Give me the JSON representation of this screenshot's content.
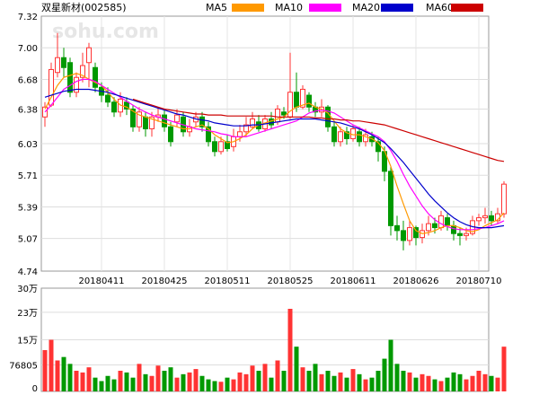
{
  "chart_data": {
    "type": "candlestick",
    "title": "双星新材(002585)",
    "watermark": "sohu.com",
    "legend": [
      {
        "name": "MA5",
        "color": "#ff9900"
      },
      {
        "name": "MA10",
        "color": "#ff00ff"
      },
      {
        "name": "MA20",
        "color": "#0000cc"
      },
      {
        "name": "MA60",
        "color": "#cc0000"
      }
    ],
    "up_color": "#ff3333",
    "down_color": "#009900",
    "price_axis": {
      "ylim": [
        4.74,
        7.32
      ],
      "ticks": [
        "7.32",
        "7.00",
        "6.68",
        "6.38",
        "6.03",
        "5.71",
        "5.39",
        "5.07",
        "4.74"
      ]
    },
    "volume_axis": {
      "ylim": [
        0,
        300000
      ],
      "ticks": [
        "30万",
        "23万",
        "15万",
        "76805",
        "0"
      ],
      "tick_values": [
        300000,
        230000,
        150000,
        76805,
        0
      ]
    },
    "x_labels": [
      {
        "label": "20180411",
        "index": 9
      },
      {
        "label": "20180425",
        "index": 19
      },
      {
        "label": "20180511",
        "index": 29
      },
      {
        "label": "20180525",
        "index": 39
      },
      {
        "label": "20180611",
        "index": 49
      },
      {
        "label": "20180626",
        "index": 59
      },
      {
        "label": "20180710",
        "index": 69
      }
    ],
    "candles": [
      [
        6.3,
        6.4,
        6.2,
        6.45
      ],
      [
        6.42,
        6.78,
        6.4,
        6.85
      ],
      [
        6.75,
        6.9,
        6.7,
        7.15
      ],
      [
        6.9,
        6.8,
        6.7,
        7.0
      ],
      [
        6.85,
        6.55,
        6.5,
        6.9
      ],
      [
        6.55,
        6.7,
        6.5,
        6.75
      ],
      [
        6.7,
        6.82,
        6.65,
        6.95
      ],
      [
        6.85,
        7.0,
        6.6,
        7.05
      ],
      [
        6.8,
        6.6,
        6.55,
        6.85
      ],
      [
        6.6,
        6.52,
        6.45,
        6.65
      ],
      [
        6.52,
        6.45,
        6.4,
        6.6
      ],
      [
        6.45,
        6.35,
        6.3,
        6.5
      ],
      [
        6.35,
        6.48,
        6.3,
        6.55
      ],
      [
        6.45,
        6.38,
        6.32,
        6.5
      ],
      [
        6.38,
        6.2,
        6.15,
        6.42
      ],
      [
        6.2,
        6.35,
        6.15,
        6.4
      ],
      [
        6.3,
        6.18,
        6.1,
        6.35
      ],
      [
        6.18,
        6.3,
        6.1,
        6.35
      ],
      [
        6.3,
        6.32,
        6.25,
        6.4
      ],
      [
        6.32,
        6.2,
        6.15,
        6.38
      ],
      [
        6.2,
        6.05,
        6.0,
        6.25
      ],
      [
        6.25,
        6.32,
        6.2,
        6.38
      ],
      [
        6.3,
        6.15,
        6.1,
        6.35
      ],
      [
        6.15,
        6.2,
        6.1,
        6.28
      ],
      [
        6.25,
        6.3,
        6.2,
        6.35
      ],
      [
        6.3,
        6.2,
        6.15,
        6.35
      ],
      [
        6.2,
        6.05,
        6.0,
        6.25
      ],
      [
        6.05,
        5.95,
        5.9,
        6.1
      ],
      [
        5.95,
        6.05,
        5.92,
        6.1
      ],
      [
        6.05,
        5.98,
        5.95,
        6.12
      ],
      [
        6.0,
        6.1,
        5.95,
        6.18
      ],
      [
        6.1,
        6.15,
        6.05,
        6.22
      ],
      [
        6.15,
        6.22,
        6.1,
        6.3
      ],
      [
        6.2,
        6.28,
        6.18,
        6.35
      ],
      [
        6.25,
        6.18,
        6.15,
        6.32
      ],
      [
        6.18,
        6.28,
        6.15,
        6.32
      ],
      [
        6.28,
        6.22,
        6.18,
        6.35
      ],
      [
        6.25,
        6.38,
        6.22,
        6.42
      ],
      [
        6.35,
        6.32,
        6.28,
        6.4
      ],
      [
        6.3,
        6.55,
        6.28,
        6.95
      ],
      [
        6.55,
        6.4,
        6.35,
        6.75
      ],
      [
        6.4,
        6.58,
        6.38,
        6.62
      ],
      [
        6.52,
        6.4,
        6.35,
        6.55
      ],
      [
        6.4,
        6.35,
        6.3,
        6.45
      ],
      [
        6.35,
        6.4,
        6.3,
        6.48
      ],
      [
        6.4,
        6.2,
        6.15,
        6.42
      ],
      [
        6.2,
        6.05,
        6.0,
        6.25
      ],
      [
        6.05,
        6.15,
        6.0,
        6.2
      ],
      [
        6.15,
        6.08,
        6.02,
        6.2
      ],
      [
        6.08,
        6.18,
        6.05,
        6.22
      ],
      [
        6.15,
        6.05,
        6.0,
        6.2
      ],
      [
        6.05,
        6.12,
        6.0,
        6.18
      ],
      [
        6.1,
        6.05,
        6.0,
        6.15
      ],
      [
        6.05,
        5.95,
        5.85,
        6.1
      ],
      [
        5.95,
        5.75,
        5.65,
        6.0
      ],
      [
        5.75,
        5.2,
        5.1,
        5.8
      ],
      [
        5.2,
        5.15,
        5.05,
        5.3
      ],
      [
        5.15,
        5.05,
        4.95,
        5.25
      ],
      [
        5.05,
        5.18,
        5.0,
        5.25
      ],
      [
        5.18,
        5.08,
        5.0,
        5.2
      ],
      [
        5.08,
        5.15,
        5.02,
        5.22
      ],
      [
        5.15,
        5.22,
        5.1,
        5.3
      ],
      [
        5.22,
        5.18,
        5.12,
        5.28
      ],
      [
        5.18,
        5.3,
        5.15,
        5.35
      ],
      [
        5.28,
        5.2,
        5.15,
        5.32
      ],
      [
        5.2,
        5.12,
        5.05,
        5.25
      ],
      [
        5.12,
        5.1,
        5.0,
        5.18
      ],
      [
        5.1,
        5.12,
        5.05,
        5.18
      ],
      [
        5.12,
        5.25,
        5.1,
        5.3
      ],
      [
        5.25,
        5.28,
        5.2,
        5.32
      ],
      [
        5.28,
        5.3,
        5.22,
        5.38
      ],
      [
        5.3,
        5.25,
        5.2,
        5.35
      ],
      [
        5.25,
        5.32,
        5.22,
        5.38
      ],
      [
        5.32,
        5.62,
        5.28,
        5.65
      ]
    ],
    "volume": [
      120000,
      150000,
      90000,
      100000,
      80000,
      60000,
      55000,
      70000,
      40000,
      30000,
      45000,
      35000,
      60000,
      55000,
      40000,
      80000,
      50000,
      45000,
      75000,
      60000,
      70000,
      40000,
      50000,
      55000,
      65000,
      45000,
      35000,
      30000,
      28000,
      40000,
      35000,
      55000,
      50000,
      75000,
      60000,
      80000,
      40000,
      90000,
      60000,
      240000,
      130000,
      70000,
      60000,
      80000,
      50000,
      60000,
      45000,
      55000,
      40000,
      65000,
      50000,
      35000,
      40000,
      60000,
      95000,
      150000,
      80000,
      60000,
      55000,
      40000,
      50000,
      45000,
      35000,
      30000,
      40000,
      55000,
      50000,
      35000,
      45000,
      60000,
      50000,
      45000,
      40000,
      130000
    ],
    "ma5": [
      6.38,
      6.5,
      6.62,
      6.7,
      6.72,
      6.74,
      6.72,
      6.68,
      6.65,
      6.62,
      6.55,
      6.48,
      6.42,
      6.4,
      6.36,
      6.32,
      6.3,
      6.28,
      6.26,
      6.24,
      6.22,
      6.2,
      6.18,
      6.18,
      6.2,
      6.22,
      6.18,
      6.12,
      6.08,
      6.04,
      6.05,
      6.08,
      6.12,
      6.18,
      6.22,
      6.24,
      6.26,
      6.28,
      6.3,
      6.36,
      6.4,
      6.42,
      6.44,
      6.4,
      6.38,
      6.34,
      6.26,
      6.18,
      6.14,
      6.12,
      6.12,
      6.1,
      6.08,
      6.04,
      5.96,
      5.8,
      5.6,
      5.42,
      5.25,
      5.15,
      5.12,
      5.13,
      5.15,
      5.18,
      5.2,
      5.2,
      5.18,
      5.15,
      5.14,
      5.16,
      5.2,
      5.23,
      5.26,
      5.33
    ],
    "ma10": [
      6.35,
      6.42,
      6.5,
      6.58,
      6.62,
      6.66,
      6.68,
      6.68,
      6.66,
      6.62,
      6.58,
      6.54,
      6.5,
      6.46,
      6.42,
      6.38,
      6.35,
      6.32,
      6.3,
      6.28,
      6.26,
      6.24,
      6.22,
      6.2,
      6.18,
      6.17,
      6.16,
      6.15,
      6.13,
      6.12,
      6.1,
      6.1,
      6.1,
      6.12,
      6.14,
      6.16,
      6.18,
      6.2,
      6.22,
      6.24,
      6.26,
      6.3,
      6.34,
      6.36,
      6.37,
      6.36,
      6.34,
      6.3,
      6.26,
      6.22,
      6.19,
      6.16,
      6.13,
      6.1,
      6.05,
      5.96,
      5.85,
      5.72,
      5.6,
      5.5,
      5.4,
      5.32,
      5.26,
      5.22,
      5.19,
      5.17,
      5.16,
      5.16,
      5.16,
      5.17,
      5.18,
      5.2,
      5.22,
      5.25
    ],
    "ma20": [
      6.5,
      6.52,
      6.54,
      6.56,
      6.57,
      6.58,
      6.58,
      6.58,
      6.57,
      6.56,
      6.55,
      6.53,
      6.51,
      6.49,
      6.47,
      6.45,
      6.43,
      6.41,
      6.39,
      6.37,
      6.35,
      6.33,
      6.32,
      6.3,
      6.28,
      6.27,
      6.26,
      6.24,
      6.23,
      6.22,
      6.21,
      6.21,
      6.21,
      6.22,
      6.22,
      6.23,
      6.24,
      6.25,
      6.26,
      6.27,
      6.28,
      6.28,
      6.28,
      6.28,
      6.27,
      6.26,
      6.25,
      6.24,
      6.22,
      6.2,
      6.18,
      6.15,
      6.12,
      6.08,
      6.04,
      5.98,
      5.91,
      5.84,
      5.76,
      5.68,
      5.6,
      5.52,
      5.45,
      5.39,
      5.33,
      5.28,
      5.24,
      5.21,
      5.19,
      5.18,
      5.18,
      5.18,
      5.19,
      5.2
    ],
    "ma60": [
      null,
      null,
      null,
      null,
      null,
      null,
      null,
      null,
      null,
      null,
      null,
      null,
      null,
      null,
      6.48,
      6.46,
      6.44,
      6.42,
      6.4,
      6.38,
      6.37,
      6.36,
      6.35,
      6.34,
      6.33,
      6.33,
      6.32,
      6.32,
      6.32,
      6.31,
      6.31,
      6.31,
      6.31,
      6.31,
      6.31,
      6.31,
      6.31,
      6.3,
      6.3,
      6.3,
      6.3,
      6.3,
      6.3,
      6.29,
      6.29,
      6.28,
      6.28,
      6.27,
      6.27,
      6.26,
      6.26,
      6.25,
      6.24,
      6.23,
      6.22,
      6.2,
      6.18,
      6.16,
      6.14,
      6.12,
      6.1,
      6.08,
      6.06,
      6.04,
      6.02,
      6.0,
      5.98,
      5.96,
      5.94,
      5.92,
      5.9,
      5.88,
      5.86,
      5.85
    ]
  }
}
